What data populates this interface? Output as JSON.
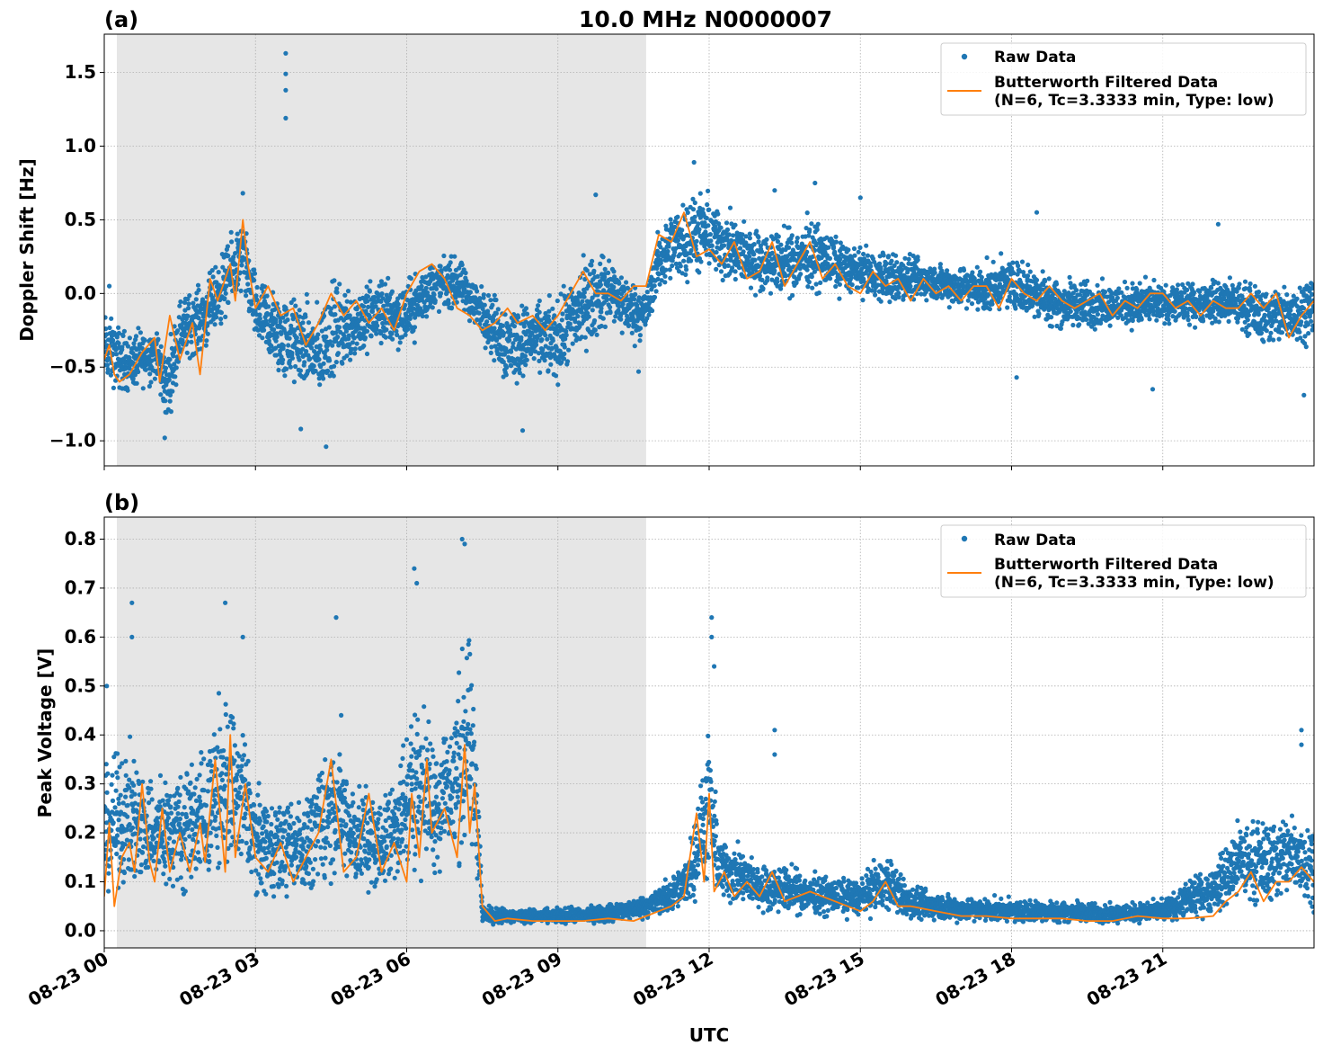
{
  "figure": {
    "title": "10.0 MHz N0000007",
    "xlabel": "UTC",
    "x_tick_labels": [
      "08-23 00",
      "08-23 03",
      "08-23 06",
      "08-23 09",
      "08-23 12",
      "08-23 15",
      "08-23 18",
      "08-23 21"
    ],
    "x_tick_hours": [
      0,
      3,
      6,
      9,
      12,
      15,
      18,
      21
    ],
    "x_range_hours": [
      0,
      24
    ],
    "shaded_span_hours": [
      0.25,
      10.75
    ],
    "colors": {
      "raw": "#1f77b4",
      "filtered": "#ff7f0e",
      "shade": "#e6e6e6",
      "grid": "#b0b0b0",
      "legend_border": "#cccccc"
    }
  },
  "chart_data": [
    {
      "type": "scatter",
      "panel_label": "(a)",
      "title": "10.0 MHz N0000007",
      "xlabel": "",
      "ylabel": "Doppler Shift [Hz]",
      "ylim": [
        -1.17,
        1.76
      ],
      "yticks": [
        -1.0,
        -0.5,
        0.0,
        0.5,
        1.0,
        1.5
      ],
      "ytick_labels": [
        "−1.0",
        "−0.5",
        "0.0",
        "0.5",
        "1.0",
        "1.5"
      ],
      "grid": true,
      "legend": {
        "position": "top-right",
        "entries": [
          {
            "label": "Raw Data",
            "marker": "dot"
          },
          {
            "label": "Butterworth Filtered Data",
            "label2": "(N=6, Tc=3.3333 min, Type: low)",
            "marker": "line"
          }
        ]
      },
      "series": [
        {
          "name": "Raw Data",
          "style": "band",
          "x": [
            0,
            0.5,
            1.0,
            1.25,
            1.5,
            2.0,
            2.5,
            2.75,
            3.0,
            3.5,
            4.0,
            4.25,
            4.5,
            5.0,
            5.5,
            6.0,
            6.5,
            7.0,
            7.5,
            8.0,
            8.5,
            9.0,
            9.5,
            10.0,
            10.5,
            10.75,
            11.0,
            11.5,
            12.0,
            12.5,
            13.0,
            13.5,
            14.0,
            14.5,
            15.0,
            15.5,
            16.0,
            16.5,
            17.0,
            17.5,
            18.0,
            18.5,
            19.0,
            19.5,
            20.0,
            20.5,
            21.0,
            21.5,
            22.0,
            22.5,
            23.0,
            23.5,
            24.0
          ],
          "low": [
            -0.7,
            -0.75,
            -0.65,
            -0.98,
            -0.55,
            -0.45,
            -0.2,
            -0.1,
            -0.45,
            -0.7,
            -0.75,
            -0.85,
            -0.7,
            -0.55,
            -0.45,
            -0.45,
            -0.2,
            -0.15,
            -0.35,
            -0.75,
            -0.6,
            -0.7,
            -0.5,
            -0.3,
            -0.4,
            -0.35,
            -0.05,
            0.0,
            0.05,
            -0.05,
            -0.05,
            -0.1,
            -0.05,
            -0.05,
            -0.05,
            -0.15,
            -0.1,
            -0.1,
            -0.15,
            -0.2,
            -0.15,
            -0.25,
            -0.3,
            -0.3,
            -0.25,
            -0.3,
            -0.25,
            -0.25,
            -0.25,
            -0.3,
            -0.4,
            -0.45,
            -0.35
          ],
          "high": [
            -0.05,
            -0.2,
            -0.15,
            -0.3,
            0.05,
            0.15,
            0.45,
            0.6,
            0.2,
            0.1,
            0.05,
            0.0,
            0.2,
            0.15,
            0.2,
            0.15,
            0.3,
            0.3,
            0.1,
            0.05,
            0.0,
            0.05,
            0.35,
            0.35,
            0.15,
            0.1,
            0.5,
            0.75,
            0.75,
            0.6,
            0.5,
            0.5,
            0.6,
            0.45,
            0.35,
            0.35,
            0.3,
            0.25,
            0.25,
            0.25,
            0.3,
            0.25,
            0.15,
            0.15,
            0.1,
            0.15,
            0.1,
            0.1,
            0.15,
            0.15,
            0.1,
            0.15,
            0.2
          ],
          "outliers": [
            [
              0.1,
              0.05
            ],
            [
              1.2,
              -0.98
            ],
            [
              2.75,
              0.68
            ],
            [
              3.6,
              1.63
            ],
            [
              3.6,
              1.49
            ],
            [
              3.6,
              1.38
            ],
            [
              3.6,
              1.19
            ],
            [
              3.9,
              -0.92
            ],
            [
              4.4,
              -1.04
            ],
            [
              8.3,
              -0.93
            ],
            [
              9.75,
              0.67
            ],
            [
              10.6,
              -0.53
            ],
            [
              11.7,
              0.89
            ],
            [
              13.3,
              0.7
            ],
            [
              14.1,
              0.75
            ],
            [
              15.0,
              0.65
            ],
            [
              18.1,
              -0.57
            ],
            [
              18.5,
              0.55
            ],
            [
              20.8,
              -0.65
            ],
            [
              22.1,
              0.47
            ],
            [
              23.8,
              -0.69
            ]
          ]
        },
        {
          "name": "Butterworth Filtered Data (N=6, Tc=3.3333 min, Type: low)",
          "style": "line",
          "x": [
            0,
            0.1,
            0.2,
            0.3,
            0.5,
            0.75,
            1.0,
            1.1,
            1.3,
            1.5,
            1.75,
            1.9,
            2.1,
            2.25,
            2.5,
            2.6,
            2.75,
            2.85,
            3.0,
            3.25,
            3.5,
            3.75,
            4.0,
            4.25,
            4.5,
            4.75,
            5.0,
            5.25,
            5.5,
            5.75,
            6.0,
            6.25,
            6.5,
            6.75,
            7.0,
            7.25,
            7.5,
            7.75,
            8.0,
            8.2,
            8.5,
            8.75,
            9.0,
            9.25,
            9.5,
            9.75,
            10.0,
            10.25,
            10.5,
            10.75,
            11.0,
            11.25,
            11.5,
            11.75,
            12.0,
            12.25,
            12.5,
            12.75,
            13.0,
            13.25,
            13.5,
            13.75,
            14.0,
            14.25,
            14.5,
            14.75,
            15.0,
            15.25,
            15.5,
            15.75,
            16.0,
            16.25,
            16.5,
            16.75,
            17.0,
            17.25,
            17.5,
            17.75,
            18.0,
            18.25,
            18.5,
            18.75,
            19.0,
            19.25,
            19.5,
            19.75,
            20.0,
            20.25,
            20.5,
            20.75,
            21.0,
            21.25,
            21.5,
            21.75,
            22.0,
            22.25,
            22.5,
            22.75,
            23.0,
            23.25,
            23.5,
            23.75,
            24.0
          ],
          "y": [
            -0.45,
            -0.35,
            -0.55,
            -0.6,
            -0.55,
            -0.4,
            -0.3,
            -0.6,
            -0.15,
            -0.45,
            -0.2,
            -0.55,
            0.1,
            -0.05,
            0.2,
            -0.05,
            0.5,
            0.2,
            -0.1,
            0.05,
            -0.15,
            -0.1,
            -0.35,
            -0.2,
            0.0,
            -0.15,
            -0.05,
            -0.2,
            -0.1,
            -0.25,
            0.0,
            0.15,
            0.2,
            0.1,
            -0.1,
            -0.15,
            -0.25,
            -0.2,
            -0.1,
            -0.2,
            -0.15,
            -0.25,
            -0.15,
            0.0,
            0.15,
            0.0,
            0.0,
            -0.05,
            0.05,
            0.05,
            0.4,
            0.35,
            0.55,
            0.25,
            0.3,
            0.2,
            0.35,
            0.1,
            0.15,
            0.35,
            0.05,
            0.2,
            0.35,
            0.1,
            0.2,
            0.05,
            0.0,
            0.15,
            0.05,
            0.1,
            -0.05,
            0.1,
            0.0,
            0.05,
            -0.05,
            0.05,
            0.05,
            -0.1,
            0.1,
            0.0,
            -0.05,
            0.05,
            -0.05,
            -0.1,
            -0.05,
            0.0,
            -0.15,
            -0.05,
            -0.1,
            0.0,
            0.0,
            -0.1,
            -0.05,
            -0.15,
            -0.05,
            -0.1,
            -0.1,
            0.0,
            -0.1,
            0.0,
            -0.3,
            -0.15,
            -0.05
          ]
        }
      ]
    },
    {
      "type": "scatter",
      "panel_label": "(b)",
      "title": "",
      "xlabel": "UTC",
      "ylabel": "Peak Voltage [V]",
      "ylim": [
        -0.035,
        0.845
      ],
      "yticks": [
        0.0,
        0.1,
        0.2,
        0.3,
        0.4,
        0.5,
        0.6,
        0.7,
        0.8
      ],
      "ytick_labels": [
        "0.0",
        "0.1",
        "0.2",
        "0.3",
        "0.4",
        "0.5",
        "0.6",
        "0.7",
        "0.8"
      ],
      "grid": true,
      "legend": {
        "position": "top-right",
        "entries": [
          {
            "label": "Raw Data",
            "marker": "dot"
          },
          {
            "label": "Butterworth Filtered Data",
            "label2": "(N=6, Tc=3.3333 min, Type: low)",
            "marker": "line"
          }
        ]
      },
      "series": [
        {
          "name": "Raw Data",
          "style": "band",
          "x": [
            0,
            0.5,
            1.0,
            1.5,
            2.0,
            2.4,
            2.75,
            3.0,
            3.5,
            4.0,
            4.5,
            5.0,
            5.5,
            6.0,
            6.2,
            6.5,
            7.0,
            7.2,
            7.4,
            7.5,
            8.0,
            9.0,
            10.0,
            10.75,
            11.0,
            11.5,
            11.8,
            12.0,
            12.2,
            12.5,
            13.0,
            13.5,
            14.0,
            14.5,
            15.0,
            15.5,
            16.0,
            16.5,
            17.0,
            18.0,
            19.0,
            20.0,
            21.0,
            22.0,
            22.5,
            23.0,
            23.5,
            24.0
          ],
          "low": [
            0.04,
            0.05,
            0.05,
            0.04,
            0.05,
            0.06,
            0.06,
            0.04,
            0.04,
            0.05,
            0.06,
            0.05,
            0.05,
            0.06,
            0.08,
            0.07,
            0.06,
            0.08,
            0.05,
            0.01,
            0.01,
            0.01,
            0.01,
            0.02,
            0.02,
            0.03,
            0.04,
            0.05,
            0.04,
            0.03,
            0.03,
            0.02,
            0.02,
            0.02,
            0.02,
            0.02,
            0.01,
            0.01,
            0.01,
            0.01,
            0.01,
            0.01,
            0.01,
            0.02,
            0.03,
            0.03,
            0.03,
            0.03
          ],
          "high": [
            0.38,
            0.42,
            0.35,
            0.38,
            0.42,
            0.55,
            0.48,
            0.33,
            0.3,
            0.3,
            0.45,
            0.33,
            0.3,
            0.45,
            0.55,
            0.45,
            0.55,
            0.72,
            0.45,
            0.06,
            0.05,
            0.05,
            0.06,
            0.08,
            0.1,
            0.15,
            0.32,
            0.45,
            0.22,
            0.2,
            0.15,
            0.15,
            0.13,
            0.12,
            0.12,
            0.18,
            0.1,
            0.09,
            0.08,
            0.07,
            0.07,
            0.06,
            0.07,
            0.15,
            0.25,
            0.25,
            0.28,
            0.25
          ],
          "outliers": [
            [
              0.05,
              0.5
            ],
            [
              0.55,
              0.67
            ],
            [
              0.55,
              0.6
            ],
            [
              2.4,
              0.67
            ],
            [
              2.75,
              0.6
            ],
            [
              4.6,
              0.64
            ],
            [
              4.7,
              0.44
            ],
            [
              6.15,
              0.74
            ],
            [
              6.2,
              0.71
            ],
            [
              7.1,
              0.8
            ],
            [
              7.15,
              0.79
            ],
            [
              12.05,
              0.64
            ],
            [
              12.05,
              0.6
            ],
            [
              12.1,
              0.54
            ],
            [
              13.3,
              0.41
            ],
            [
              13.3,
              0.36
            ],
            [
              23.75,
              0.41
            ],
            [
              23.75,
              0.38
            ]
          ]
        },
        {
          "name": "Butterworth Filtered Data (N=6, Tc=3.3333 min, Type: low)",
          "style": "line",
          "x": [
            0,
            0.1,
            0.2,
            0.35,
            0.5,
            0.6,
            0.75,
            0.9,
            1.0,
            1.15,
            1.3,
            1.5,
            1.7,
            1.9,
            2.0,
            2.2,
            2.4,
            2.5,
            2.6,
            2.8,
            3.0,
            3.25,
            3.5,
            3.75,
            4.0,
            4.25,
            4.5,
            4.75,
            5.0,
            5.25,
            5.5,
            5.75,
            6.0,
            6.1,
            6.25,
            6.4,
            6.5,
            6.75,
            7.0,
            7.15,
            7.25,
            7.35,
            7.5,
            7.75,
            8.0,
            8.5,
            9.0,
            9.5,
            10.0,
            10.5,
            11.0,
            11.25,
            11.5,
            11.75,
            11.9,
            12.0,
            12.1,
            12.3,
            12.5,
            12.75,
            13.0,
            13.25,
            13.5,
            14.0,
            14.5,
            15.0,
            15.25,
            15.5,
            15.75,
            16.0,
            16.5,
            17.0,
            17.5,
            18.0,
            18.5,
            19.0,
            19.5,
            20.0,
            20.5,
            21.0,
            21.5,
            22.0,
            22.25,
            22.5,
            22.75,
            23.0,
            23.25,
            23.5,
            23.75,
            24.0
          ],
          "y": [
            0.07,
            0.22,
            0.05,
            0.15,
            0.18,
            0.12,
            0.3,
            0.14,
            0.1,
            0.25,
            0.12,
            0.2,
            0.12,
            0.22,
            0.14,
            0.35,
            0.12,
            0.4,
            0.15,
            0.3,
            0.15,
            0.12,
            0.18,
            0.1,
            0.15,
            0.2,
            0.35,
            0.12,
            0.15,
            0.28,
            0.12,
            0.18,
            0.1,
            0.28,
            0.15,
            0.35,
            0.2,
            0.25,
            0.15,
            0.38,
            0.2,
            0.3,
            0.05,
            0.02,
            0.025,
            0.02,
            0.02,
            0.02,
            0.025,
            0.02,
            0.04,
            0.05,
            0.07,
            0.24,
            0.1,
            0.28,
            0.08,
            0.12,
            0.07,
            0.1,
            0.07,
            0.12,
            0.06,
            0.08,
            0.06,
            0.04,
            0.06,
            0.1,
            0.05,
            0.05,
            0.04,
            0.03,
            0.03,
            0.025,
            0.025,
            0.025,
            0.02,
            0.02,
            0.03,
            0.025,
            0.025,
            0.03,
            0.06,
            0.08,
            0.12,
            0.06,
            0.1,
            0.1,
            0.13,
            0.1
          ]
        }
      ]
    }
  ]
}
